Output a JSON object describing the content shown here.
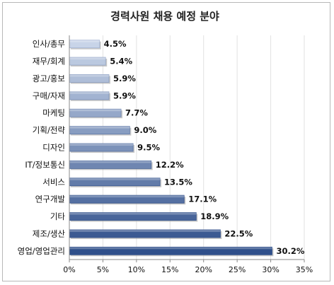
{
  "chart_data": {
    "type": "bar",
    "orientation": "horizontal",
    "title": "경력사원 채용 예정 분야",
    "categories": [
      "인사/총무",
      "재무/회계",
      "광고/홍보",
      "구매/자재",
      "마케팅",
      "기획/전략",
      "디자인",
      "IT/정보통신",
      "서비스",
      "연구개발",
      "기타",
      "제조/생산",
      "영업/영업관리"
    ],
    "values": [
      4.5,
      5.4,
      5.9,
      5.9,
      7.7,
      9.0,
      9.5,
      12.2,
      13.5,
      17.1,
      18.9,
      22.5,
      30.2
    ],
    "value_labels": [
      "4.5%",
      "5.4%",
      "5.9%",
      "5.9%",
      "7.7%",
      "9.0%",
      "9.5%",
      "12.2%",
      "13.5%",
      "17.1%",
      "18.9%",
      "22.5%",
      "30.2%"
    ],
    "xlim": [
      0,
      35
    ],
    "xticks": [
      0,
      5,
      10,
      15,
      20,
      25,
      30,
      35
    ],
    "xtick_labels": [
      "0%",
      "5%",
      "10%",
      "15%",
      "20%",
      "25%",
      "30%",
      "35%"
    ],
    "grid": "vertical",
    "legend": "none",
    "colors": {
      "light": "#c8d4e8",
      "dark": "#2f4f8a",
      "title": "#222222"
    }
  }
}
